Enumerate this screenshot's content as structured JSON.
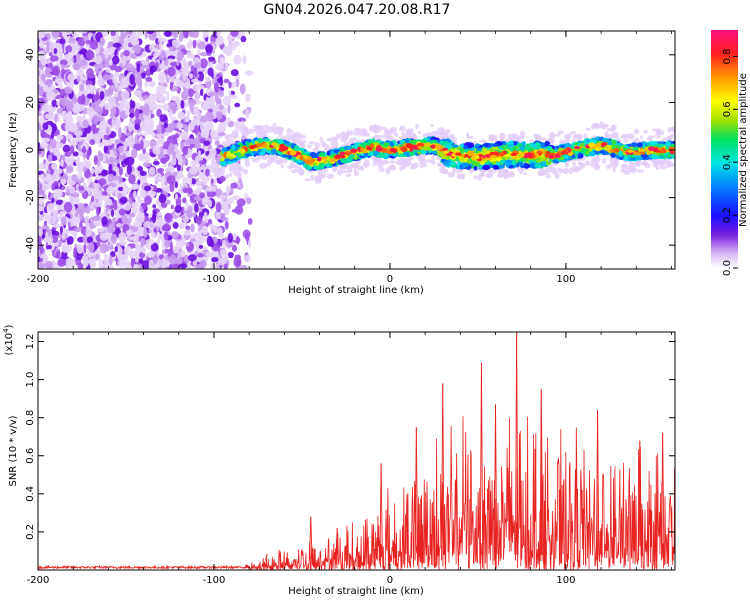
{
  "title": "GN04.2026.047.20.08.R17",
  "spectrogram": {
    "type": "heatmap",
    "xlabel": "Height of straight line (km)",
    "ylabel": "Frequency (Hz)",
    "xlim": [
      -200,
      162
    ],
    "ylim": [
      -50,
      50
    ],
    "xticks": [
      -200,
      -100,
      0,
      100
    ],
    "xtick_labels": [
      "-200",
      "-100",
      "0",
      "100"
    ],
    "yticks": [
      -40,
      -20,
      0,
      20,
      40
    ],
    "ytick_labels": [
      "-40",
      "-20",
      "0",
      "20",
      "40"
    ],
    "noise_region_x": [
      -200,
      -85
    ],
    "signal_start_x": -95,
    "ridge": [
      {
        "x": -95,
        "y": -3
      },
      {
        "x": -80,
        "y": 1
      },
      {
        "x": -65,
        "y": 2
      },
      {
        "x": -55,
        "y": -1
      },
      {
        "x": -45,
        "y": -5
      },
      {
        "x": -35,
        "y": -4
      },
      {
        "x": -25,
        "y": -2
      },
      {
        "x": -10,
        "y": 1
      },
      {
        "x": 0,
        "y": 0
      },
      {
        "x": 10,
        "y": 1
      },
      {
        "x": 25,
        "y": 2
      },
      {
        "x": 35,
        "y": -2
      },
      {
        "x": 50,
        "y": -3
      },
      {
        "x": 65,
        "y": -2
      },
      {
        "x": 80,
        "y": -2
      },
      {
        "x": 95,
        "y": -2
      },
      {
        "x": 105,
        "y": 0
      },
      {
        "x": 120,
        "y": 2
      },
      {
        "x": 135,
        "y": -1
      },
      {
        "x": 150,
        "y": 0
      },
      {
        "x": 162,
        "y": 0
      }
    ]
  },
  "colorbar": {
    "label": "Normalized spectral amplitude",
    "range": [
      0,
      0.9
    ],
    "ticks": [
      0.0,
      0.2,
      0.4,
      0.6,
      0.8
    ],
    "tick_labels": [
      "0.0",
      "0.2",
      "0.4",
      "0.6",
      "0.8"
    ]
  },
  "chart_data": {
    "type": "line",
    "title": "",
    "xlabel": "Height of straight line (km)",
    "ylabel": "SNR (10 * v/v)",
    "y_multiplier": "(x10^4)",
    "y_multiplier_base": "(x10",
    "y_multiplier_exp": "4",
    "y_multiplier_close": ")",
    "xlim": [
      -200,
      162
    ],
    "ylim": [
      0,
      1.25
    ],
    "xticks": [
      -200,
      -100,
      0,
      100
    ],
    "xtick_labels": [
      "-200",
      "-100",
      "0",
      "100"
    ],
    "yticks": [
      0.2,
      0.4,
      0.6,
      0.8,
      1.0,
      1.2
    ],
    "ytick_labels": [
      "0.2",
      "0.4",
      "0.6",
      "0.8",
      "1.0",
      "1.2"
    ],
    "color": "#e8231f",
    "envelope": [
      {
        "x": -200,
        "y": 0.02
      },
      {
        "x": -85,
        "y": 0.02
      },
      {
        "x": -75,
        "y": 0.06
      },
      {
        "x": -60,
        "y": 0.14
      },
      {
        "x": -40,
        "y": 0.22
      },
      {
        "x": -20,
        "y": 0.3
      },
      {
        "x": -5,
        "y": 0.45
      },
      {
        "x": 10,
        "y": 0.6
      },
      {
        "x": 30,
        "y": 0.85
      },
      {
        "x": 50,
        "y": 0.95
      },
      {
        "x": 75,
        "y": 1.0
      },
      {
        "x": 100,
        "y": 0.85
      },
      {
        "x": 130,
        "y": 0.8
      },
      {
        "x": 162,
        "y": 0.7
      }
    ],
    "peaks": [
      {
        "x": -70,
        "y": 0.08
      },
      {
        "x": -45,
        "y": 0.28
      },
      {
        "x": -30,
        "y": 0.22
      },
      {
        "x": -5,
        "y": 0.56
      },
      {
        "x": 15,
        "y": 0.75
      },
      {
        "x": 30,
        "y": 0.98
      },
      {
        "x": 52,
        "y": 1.09
      },
      {
        "x": 60,
        "y": 0.87
      },
      {
        "x": 72,
        "y": 1.25
      },
      {
        "x": 86,
        "y": 0.95
      },
      {
        "x": 118,
        "y": 0.84
      },
      {
        "x": 142,
        "y": 0.68
      },
      {
        "x": 155,
        "y": 0.72
      }
    ]
  }
}
